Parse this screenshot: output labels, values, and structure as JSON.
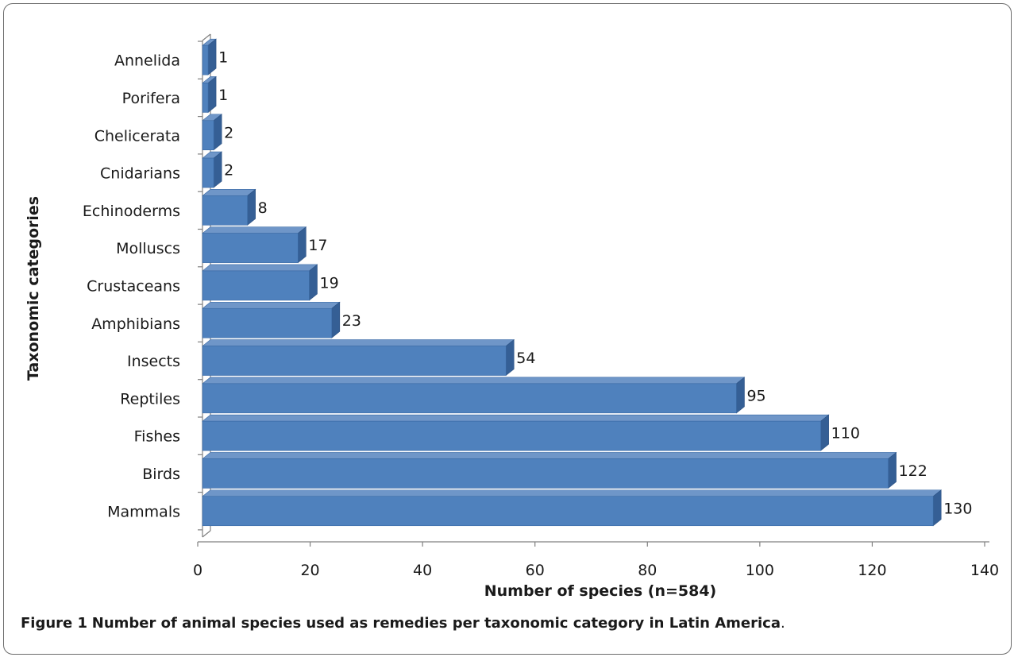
{
  "chart_data": {
    "type": "bar",
    "orientation": "horizontal",
    "style": "3d",
    "categories": [
      "Annelida",
      "Porifera",
      "Chelicerata",
      "Cnidarians",
      "Echinoderms",
      "Molluscs",
      "Crustaceans",
      "Amphibians",
      "Insects",
      "Reptiles",
      "Fishes",
      "Birds",
      "Mammals"
    ],
    "values": [
      1,
      1,
      2,
      2,
      8,
      17,
      19,
      23,
      54,
      95,
      110,
      122,
      130
    ],
    "data_labels": [
      "1",
      "1",
      "2",
      "2",
      "8",
      "17",
      "19",
      "23",
      "54",
      "95",
      "110",
      "122",
      "130"
    ],
    "xlabel": "Number of species (n=584)",
    "ylabel": "Taxonomic categories",
    "xlim": [
      0,
      140
    ],
    "xticks": [
      0,
      20,
      40,
      60,
      80,
      100,
      120,
      140
    ],
    "grid": false,
    "legend": "none",
    "colors": {
      "bar_front": "#4f81bd",
      "bar_top": "#6f96c8",
      "bar_side": "#355f95",
      "axis": "#808080"
    }
  },
  "caption": {
    "label": "Figure 1",
    "text": "Number of animal species used as remedies per taxonomic category in Latin America",
    "end": "."
  }
}
